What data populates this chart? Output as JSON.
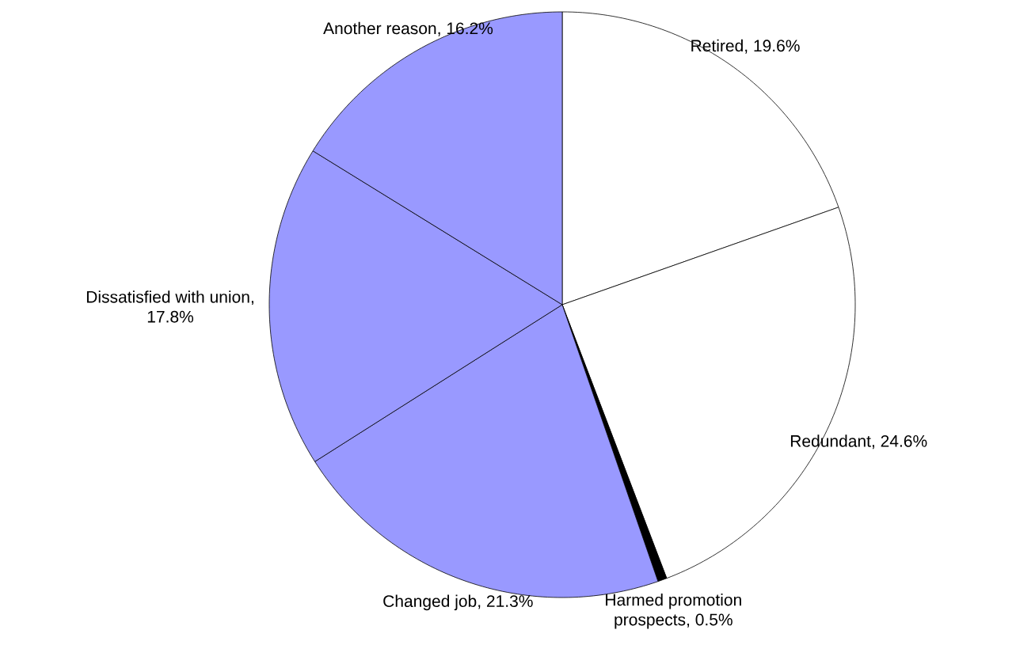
{
  "chart_data": {
    "type": "pie",
    "categories": [
      "Retired",
      "Redundant",
      "Harmed promotion prospects",
      "Changed job",
      "Dissatisfied with union",
      "Another reason"
    ],
    "values": [
      19.6,
      24.6,
      0.5,
      21.3,
      17.8,
      16.2
    ],
    "value_labels": [
      ", 19.6%",
      ", 24.6%",
      ", 0.5%",
      ", 21.3%",
      ", 17.8%",
      ", 16.2%"
    ],
    "colors": [
      "#ffffff",
      "#ffffff",
      "#000000",
      "#9999ff",
      "#9999ff",
      "#9999ff"
    ]
  }
}
